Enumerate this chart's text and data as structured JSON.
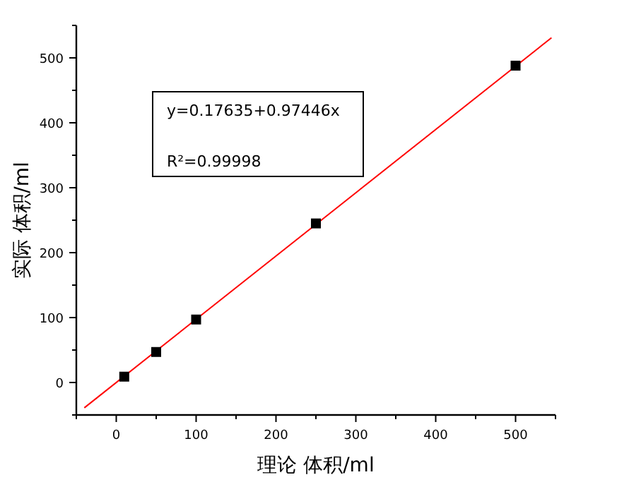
{
  "chart_data": {
    "type": "scatter",
    "xlabel": "理论  体积/ml",
    "ylabel": "实际  体积/ml",
    "annotations": [
      "y=0.17635+0.97446x",
      "R²=0.99998"
    ],
    "x": [
      10,
      50,
      100,
      250,
      500
    ],
    "series": [
      {
        "color": "#000000",
        "marker": "square",
        "values": [
          9,
          47,
          97,
          245,
          488
        ]
      },
      {
        "type": "line",
        "color": "#ff0000",
        "marker": "none",
        "x": [
          -40,
          545
        ],
        "values": [
          -39,
          531
        ]
      }
    ],
    "xlim": [
      -50,
      550
    ],
    "ylim": [
      -50,
      550
    ],
    "xticks": [
      {
        "value": -50,
        "label": null
      },
      0,
      {
        "value": 50,
        "label": null
      },
      100,
      {
        "value": 150,
        "label": null
      },
      200,
      {
        "value": 250,
        "label": null
      },
      300,
      {
        "value": 350,
        "label": null
      },
      400,
      {
        "value": 450,
        "label": null
      },
      500,
      {
        "value": 550,
        "label": null
      }
    ],
    "yticks": [
      {
        "value": -50,
        "label": null
      },
      0,
      {
        "value": 50,
        "label": null
      },
      100,
      {
        "value": 150,
        "label": null
      },
      200,
      {
        "value": 250,
        "label": null
      },
      300,
      {
        "value": 350,
        "label": null
      },
      400,
      {
        "value": 450,
        "label": null
      },
      500,
      {
        "value": 550,
        "label": null
      }
    ],
    "grid": false
  }
}
